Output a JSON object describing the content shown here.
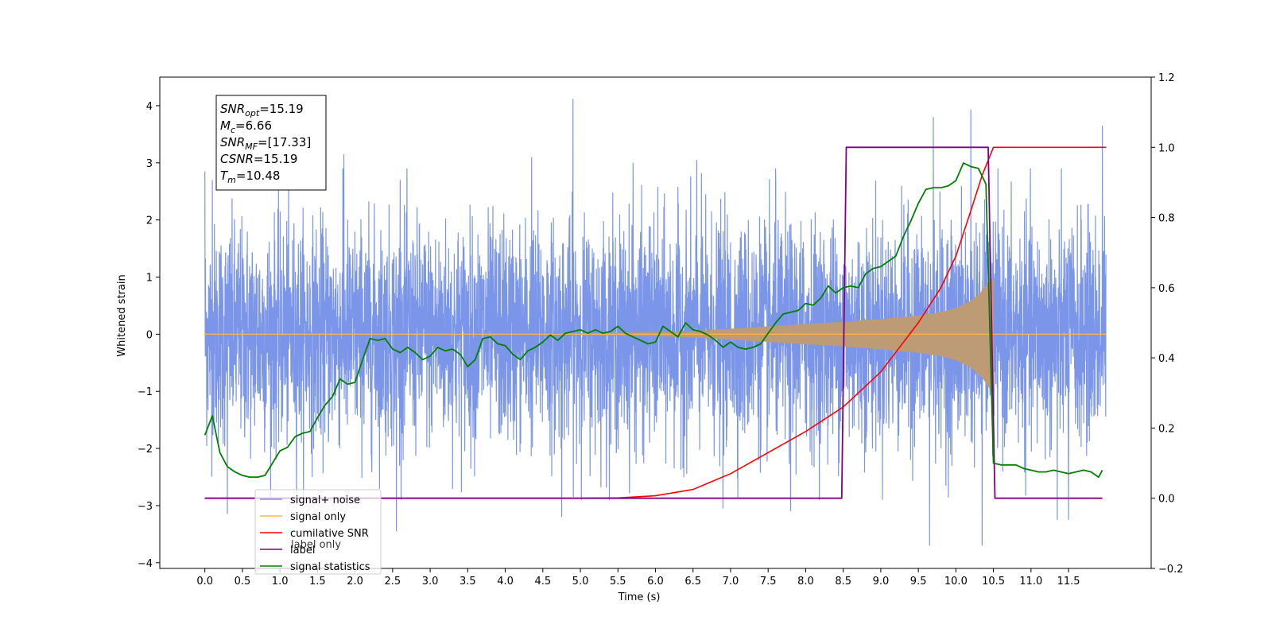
{
  "chart_data": {
    "type": "line",
    "title": "",
    "xlabel": "Time (s)",
    "ylabel": "Whitened strain",
    "xlim": [
      -0.6,
      12.6
    ],
    "ylim": [
      -4.1,
      4.5
    ],
    "y2lim": [
      -0.2,
      1.2
    ],
    "x_ticks": [
      0.0,
      0.5,
      1.0,
      1.5,
      2.0,
      2.5,
      3.0,
      3.5,
      4.0,
      4.5,
      5.0,
      5.5,
      6.0,
      6.5,
      7.0,
      7.5,
      8.0,
      8.5,
      9.0,
      9.5,
      10.0,
      10.5,
      11.0,
      11.5
    ],
    "x_tick_labels": [
      "0.0",
      "0.5",
      "1.0",
      "1.5",
      "2.0",
      "2.5",
      "3.0",
      "3.5",
      "4.0",
      "4.5",
      "5.0",
      "5.5",
      "6.0",
      "6.5",
      "7.0",
      "7.5",
      "8.0",
      "8.5",
      "9.0",
      "9.5",
      "10.0",
      "10.5",
      "11.0",
      "11.5"
    ],
    "y_ticks": [
      -4,
      -3,
      -2,
      -1,
      0,
      1,
      2,
      3,
      4
    ],
    "y_tick_labels": [
      "−4",
      "−3",
      "−2",
      "−1",
      "0",
      "1",
      "2",
      "3",
      "4"
    ],
    "y2_ticks": [
      -0.2,
      0.0,
      0.2,
      0.4,
      0.6,
      0.8,
      1.0,
      1.2
    ],
    "y2_tick_labels": [
      "−0.2",
      "0.0",
      "0.2",
      "0.4",
      "0.6",
      "0.8",
      "1.0",
      "1.2"
    ],
    "grid": false,
    "legend_placement": "lower-left",
    "series": [
      {
        "name": "signal+ noise",
        "axis": "left",
        "color": "#7b96e8",
        "description": "dense noisy strain, mostly within about ±2.3, extremes ~4.1",
        "peaks": [
          [
            0.0,
            2.85
          ],
          [
            0.1,
            2.7
          ],
          [
            1.85,
            3.15
          ],
          [
            2.6,
            2.7
          ],
          [
            4.35,
            3.1
          ],
          [
            4.9,
            4.12
          ],
          [
            5.7,
            3.0
          ],
          [
            6.55,
            3.05
          ],
          [
            7.6,
            2.9
          ],
          [
            9.7,
            3.8
          ],
          [
            10.2,
            3.93
          ],
          [
            11.95,
            3.65
          ]
        ],
        "troughs": [
          [
            0.3,
            -3.15
          ],
          [
            2.55,
            -3.45
          ],
          [
            4.75,
            -3.2
          ],
          [
            6.9,
            -3.05
          ],
          [
            7.8,
            -3.1
          ],
          [
            9.65,
            -3.7
          ],
          [
            10.35,
            -3.7
          ],
          [
            11.35,
            -3.25
          ],
          [
            11.5,
            -3.25
          ]
        ]
      },
      {
        "name": "signal only",
        "axis": "left",
        "color": "#ffb74d",
        "envelope": [
          [
            0.0,
            0.0
          ],
          [
            5.0,
            0.01
          ],
          [
            6.0,
            0.03
          ],
          [
            6.5,
            0.05
          ],
          [
            7.0,
            0.09
          ],
          [
            7.5,
            0.13
          ],
          [
            8.0,
            0.17
          ],
          [
            8.5,
            0.21
          ],
          [
            9.0,
            0.26
          ],
          [
            9.5,
            0.32
          ],
          [
            9.8,
            0.38
          ],
          [
            10.0,
            0.45
          ],
          [
            10.2,
            0.58
          ],
          [
            10.35,
            0.75
          ],
          [
            10.45,
            0.95
          ],
          [
            10.5,
            0.0
          ],
          [
            12.0,
            0.0
          ]
        ]
      },
      {
        "name": "cumilative SNR",
        "axis": "right",
        "color": "#ff0000",
        "points": [
          [
            0.0,
            0.0
          ],
          [
            5.0,
            0.0
          ],
          [
            5.5,
            0.001
          ],
          [
            6.0,
            0.007
          ],
          [
            6.5,
            0.025
          ],
          [
            7.0,
            0.07
          ],
          [
            7.5,
            0.13
          ],
          [
            8.0,
            0.19
          ],
          [
            8.5,
            0.26
          ],
          [
            9.0,
            0.36
          ],
          [
            9.5,
            0.5
          ],
          [
            9.8,
            0.6
          ],
          [
            10.0,
            0.69
          ],
          [
            10.2,
            0.82
          ],
          [
            10.35,
            0.92
          ],
          [
            10.5,
            1.0
          ],
          [
            12.0,
            1.0
          ]
        ]
      },
      {
        "name": "label",
        "axis": "right",
        "color": "#800080",
        "points": [
          [
            0.0,
            0.0
          ],
          [
            8.48,
            0.0
          ],
          [
            8.54,
            1.0
          ],
          [
            10.43,
            1.0
          ],
          [
            10.52,
            0.0
          ],
          [
            11.95,
            0.0
          ]
        ]
      },
      {
        "name": "signal statistics",
        "axis": "right",
        "color": "#008000",
        "points": [
          [
            0.0,
            0.18
          ],
          [
            0.1,
            0.235
          ],
          [
            0.2,
            0.13
          ],
          [
            0.3,
            0.09
          ],
          [
            0.4,
            0.075
          ],
          [
            0.5,
            0.065
          ],
          [
            0.6,
            0.06
          ],
          [
            0.7,
            0.06
          ],
          [
            0.8,
            0.065
          ],
          [
            0.9,
            0.1
          ],
          [
            1.0,
            0.135
          ],
          [
            1.1,
            0.145
          ],
          [
            1.2,
            0.175
          ],
          [
            1.3,
            0.185
          ],
          [
            1.4,
            0.19
          ],
          [
            1.5,
            0.23
          ],
          [
            1.6,
            0.265
          ],
          [
            1.7,
            0.29
          ],
          [
            1.8,
            0.34
          ],
          [
            1.9,
            0.325
          ],
          [
            2.0,
            0.33
          ],
          [
            2.1,
            0.395
          ],
          [
            2.2,
            0.455
          ],
          [
            2.3,
            0.45
          ],
          [
            2.4,
            0.455
          ],
          [
            2.5,
            0.425
          ],
          [
            2.6,
            0.415
          ],
          [
            2.7,
            0.43
          ],
          [
            2.8,
            0.415
          ],
          [
            2.9,
            0.395
          ],
          [
            3.0,
            0.405
          ],
          [
            3.1,
            0.43
          ],
          [
            3.2,
            0.42
          ],
          [
            3.3,
            0.425
          ],
          [
            3.4,
            0.41
          ],
          [
            3.5,
            0.375
          ],
          [
            3.6,
            0.395
          ],
          [
            3.7,
            0.455
          ],
          [
            3.8,
            0.46
          ],
          [
            3.9,
            0.44
          ],
          [
            4.0,
            0.435
          ],
          [
            4.1,
            0.41
          ],
          [
            4.2,
            0.395
          ],
          [
            4.3,
            0.42
          ],
          [
            4.4,
            0.43
          ],
          [
            4.5,
            0.445
          ],
          [
            4.6,
            0.465
          ],
          [
            4.7,
            0.45
          ],
          [
            4.8,
            0.47
          ],
          [
            4.9,
            0.475
          ],
          [
            5.0,
            0.48
          ],
          [
            5.1,
            0.47
          ],
          [
            5.2,
            0.48
          ],
          [
            5.3,
            0.47
          ],
          [
            5.4,
            0.475
          ],
          [
            5.5,
            0.49
          ],
          [
            5.6,
            0.47
          ],
          [
            5.7,
            0.46
          ],
          [
            5.8,
            0.45
          ],
          [
            5.9,
            0.44
          ],
          [
            6.0,
            0.445
          ],
          [
            6.1,
            0.49
          ],
          [
            6.2,
            0.475
          ],
          [
            6.3,
            0.46
          ],
          [
            6.4,
            0.5
          ],
          [
            6.5,
            0.48
          ],
          [
            6.6,
            0.475
          ],
          [
            6.7,
            0.465
          ],
          [
            6.8,
            0.45
          ],
          [
            6.9,
            0.43
          ],
          [
            7.0,
            0.445
          ],
          [
            7.1,
            0.43
          ],
          [
            7.2,
            0.425
          ],
          [
            7.3,
            0.43
          ],
          [
            7.4,
            0.44
          ],
          [
            7.5,
            0.47
          ],
          [
            7.6,
            0.5
          ],
          [
            7.7,
            0.525
          ],
          [
            7.8,
            0.53
          ],
          [
            7.9,
            0.535
          ],
          [
            8.0,
            0.555
          ],
          [
            8.1,
            0.55
          ],
          [
            8.2,
            0.57
          ],
          [
            8.3,
            0.605
          ],
          [
            8.4,
            0.585
          ],
          [
            8.5,
            0.6
          ],
          [
            8.6,
            0.605
          ],
          [
            8.7,
            0.6
          ],
          [
            8.8,
            0.64
          ],
          [
            8.9,
            0.655
          ],
          [
            9.0,
            0.66
          ],
          [
            9.1,
            0.675
          ],
          [
            9.2,
            0.69
          ],
          [
            9.3,
            0.745
          ],
          [
            9.4,
            0.79
          ],
          [
            9.5,
            0.84
          ],
          [
            9.6,
            0.88
          ],
          [
            9.7,
            0.885
          ],
          [
            9.8,
            0.885
          ],
          [
            9.9,
            0.89
          ],
          [
            10.0,
            0.905
          ],
          [
            10.1,
            0.955
          ],
          [
            10.2,
            0.945
          ],
          [
            10.3,
            0.94
          ],
          [
            10.4,
            0.895
          ],
          [
            10.5,
            0.1
          ],
          [
            10.6,
            0.095
          ],
          [
            10.7,
            0.095
          ],
          [
            10.8,
            0.095
          ],
          [
            10.9,
            0.085
          ],
          [
            11.0,
            0.08
          ],
          [
            11.1,
            0.075
          ],
          [
            11.2,
            0.075
          ],
          [
            11.3,
            0.08
          ],
          [
            11.4,
            0.075
          ],
          [
            11.5,
            0.07
          ],
          [
            11.6,
            0.075
          ],
          [
            11.7,
            0.08
          ],
          [
            11.8,
            0.075
          ],
          [
            11.9,
            0.06
          ],
          [
            11.95,
            0.08
          ]
        ]
      }
    ],
    "annotations": {
      "info_box": [
        {
          "base": "SNR",
          "sub": "opt",
          "value": "=15.19"
        },
        {
          "base": "M",
          "sub": "c",
          "value": "=6.66"
        },
        {
          "base": "SNR",
          "sub": "MF",
          "value": "=[17.33]"
        },
        {
          "base": "CSNR",
          "sub": "",
          "value": "=15.19"
        },
        {
          "base": "T",
          "sub": "m",
          "value": "=10.48"
        }
      ],
      "overlapping_legend_text": "label only"
    }
  }
}
